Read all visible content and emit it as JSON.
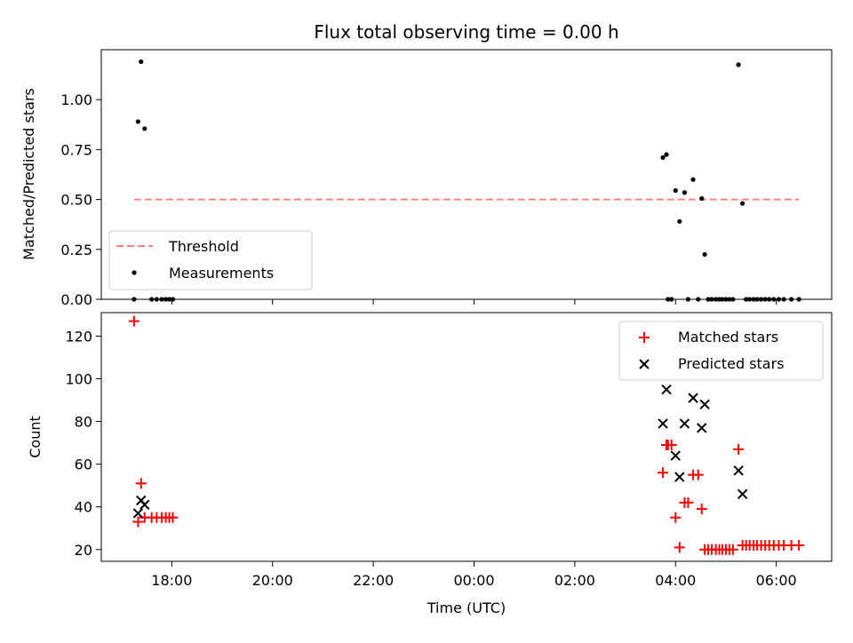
{
  "chart_data": [
    {
      "type": "scatter",
      "title": "Flux total observing time = 0.00 h",
      "xlabel": "",
      "ylabel": "Matched/Predicted stars",
      "xlim": [
        -7.4,
        7.1
      ],
      "ylim": [
        0,
        1.25
      ],
      "yticks": [
        0.0,
        0.25,
        0.5,
        0.75,
        1.0
      ],
      "ytick_labels": [
        "0.00",
        "0.25",
        "0.50",
        "0.75",
        "1.00"
      ],
      "xticks": [
        -6,
        -4,
        -2,
        0,
        2,
        4,
        6
      ],
      "legend": "lower-left",
      "series": [
        {
          "name": "Threshold",
          "kind": "line",
          "color": "#ff8080",
          "dashed": true,
          "x": [
            -6.75,
            6.45
          ],
          "y": [
            0.5,
            0.5
          ]
        },
        {
          "name": "Measurements",
          "kind": "points",
          "color": "#000000",
          "x": [
            -6.75,
            -6.67,
            -6.61,
            -6.54,
            -6.4,
            -6.3,
            -6.2,
            -6.12,
            -6.05,
            -5.98,
            3.75,
            3.82,
            3.85,
            3.92,
            4.0,
            4.08,
            4.18,
            4.25,
            4.35,
            4.45,
            4.52,
            4.58,
            4.65,
            4.72,
            4.8,
            4.87,
            4.93,
            5.0,
            5.07,
            5.14,
            5.25,
            5.33,
            5.4,
            5.47,
            5.55,
            5.62,
            5.7,
            5.78,
            5.86,
            5.95,
            6.05,
            6.15,
            6.3,
            6.45
          ],
          "y": [
            0.0,
            0.89,
            1.19,
            0.855,
            0.0,
            0.0,
            0.0,
            0.0,
            0.0,
            0.0,
            0.71,
            0.725,
            0.0,
            0.0,
            0.545,
            0.39,
            0.535,
            0.0,
            0.6,
            0.0,
            0.505,
            0.225,
            0.0,
            0.0,
            0.0,
            0.0,
            0.0,
            0.0,
            0.0,
            0.0,
            1.175,
            0.48,
            0.0,
            0.0,
            0.0,
            0.0,
            0.0,
            0.0,
            0.0,
            0.0,
            0.0,
            0.0,
            0.0,
            0.0
          ]
        }
      ]
    },
    {
      "type": "scatter",
      "title": "",
      "xlabel": "Time (UTC)",
      "ylabel": "Count",
      "xlim": [
        -7.4,
        7.1
      ],
      "ylim": [
        14.5,
        131
      ],
      "yticks": [
        20,
        40,
        60,
        80,
        100,
        120
      ],
      "xticks": [
        -6,
        -4,
        -2,
        0,
        2,
        4,
        6
      ],
      "xtick_labels": [
        "18:00",
        "20:00",
        "22:00",
        "00:00",
        "02:00",
        "04:00",
        "06:00"
      ],
      "legend": "upper-right",
      "series": [
        {
          "name": "Matched stars",
          "marker": "plus",
          "color": "#ff0000",
          "x": [
            -6.75,
            -6.67,
            -6.61,
            -6.54,
            -6.4,
            -6.3,
            -6.2,
            -6.12,
            -6.05,
            -5.98,
            3.75,
            3.82,
            3.85,
            3.92,
            4.0,
            4.08,
            4.18,
            4.25,
            4.35,
            4.45,
            4.52,
            4.58,
            4.65,
            4.72,
            4.8,
            4.87,
            4.93,
            5.0,
            5.07,
            5.14,
            5.25,
            5.33,
            5.4,
            5.47,
            5.55,
            5.62,
            5.7,
            5.78,
            5.86,
            5.95,
            6.05,
            6.15,
            6.3,
            6.45
          ],
          "y": [
            127,
            33,
            51,
            35,
            35,
            35,
            35,
            35,
            35,
            35,
            56,
            69,
            69,
            69,
            35,
            21,
            42,
            42,
            55,
            55,
            39,
            20,
            20,
            20,
            20,
            20,
            20,
            20,
            20,
            20,
            67,
            22,
            22,
            22,
            22,
            22,
            22,
            22,
            22,
            22,
            22,
            22,
            22,
            22
          ]
        },
        {
          "name": "Predicted stars",
          "marker": "x",
          "color": "#000000",
          "x": [
            -6.67,
            -6.61,
            -6.54,
            3.75,
            3.82,
            4.0,
            4.08,
            4.18,
            4.35,
            4.52,
            4.58,
            5.25,
            5.33
          ],
          "y": [
            37,
            43,
            41,
            79,
            95,
            64,
            54,
            79,
            91,
            77,
            88,
            57,
            46
          ]
        }
      ]
    }
  ]
}
